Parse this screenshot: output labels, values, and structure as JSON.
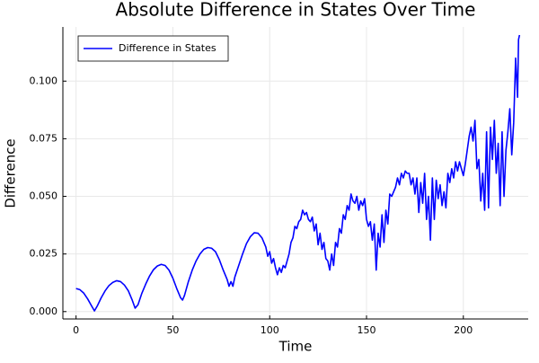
{
  "chart_data": {
    "type": "line",
    "title": "Absolute Difference in States Over Time",
    "xlabel": "Time",
    "ylabel": "Difference",
    "x": [
      0,
      2,
      4,
      6,
      8,
      9.5,
      11,
      13,
      15,
      17,
      19,
      21,
      23,
      25,
      27,
      29,
      30.5,
      32,
      34,
      36,
      38,
      40,
      42,
      44,
      46,
      48,
      50,
      52,
      54,
      55,
      56,
      58,
      60,
      62,
      64,
      66,
      68,
      70,
      72,
      74,
      76,
      78,
      79,
      80,
      81,
      82,
      84,
      86,
      88,
      90,
      92,
      94,
      96,
      98,
      99,
      100,
      101,
      102,
      103,
      104,
      105,
      106,
      107,
      108,
      110,
      111,
      112,
      113,
      114,
      115,
      116,
      117,
      118,
      119,
      120,
      121,
      122,
      123,
      124,
      125,
      126,
      127,
      128,
      129,
      130,
      131,
      132,
      133,
      134,
      135,
      136,
      137,
      138,
      139,
      140,
      141,
      142,
      143,
      144,
      145,
      146,
      147,
      148,
      149,
      150,
      151,
      152,
      153,
      154,
      155,
      156,
      157,
      158,
      159,
      160,
      161,
      162,
      163,
      164,
      165,
      166,
      167,
      168,
      169,
      170,
      171,
      172,
      173,
      174,
      175,
      176,
      177,
      178,
      179,
      180,
      181,
      182,
      183,
      184,
      185,
      186,
      187,
      188,
      189,
      190,
      191,
      192,
      193,
      194,
      195,
      196,
      197,
      198,
      199,
      200,
      201,
      202,
      203,
      204,
      205,
      206,
      207,
      208,
      209,
      210,
      211,
      212,
      213,
      214,
      215,
      216,
      217,
      218,
      219,
      220,
      221,
      222,
      223,
      224,
      225,
      226,
      227,
      228,
      228.5,
      229
    ],
    "series": [
      {
        "name": "Difference in States",
        "color": "#0000ff",
        "values": [
          0.01,
          0.0095,
          0.008,
          0.0055,
          0.0025,
          0.0003,
          0.0025,
          0.006,
          0.009,
          0.0113,
          0.0127,
          0.0134,
          0.013,
          0.0115,
          0.009,
          0.005,
          0.0015,
          0.003,
          0.008,
          0.012,
          0.0155,
          0.0182,
          0.0198,
          0.0205,
          0.02,
          0.018,
          0.0145,
          0.01,
          0.006,
          0.005,
          0.007,
          0.013,
          0.018,
          0.022,
          0.025,
          0.027,
          0.0278,
          0.0275,
          0.026,
          0.0225,
          0.018,
          0.014,
          0.011,
          0.013,
          0.011,
          0.015,
          0.02,
          0.025,
          0.0295,
          0.0325,
          0.0342,
          0.034,
          0.032,
          0.028,
          0.024,
          0.026,
          0.021,
          0.023,
          0.019,
          0.016,
          0.019,
          0.017,
          0.02,
          0.019,
          0.025,
          0.03,
          0.032,
          0.037,
          0.036,
          0.039,
          0.04,
          0.044,
          0.042,
          0.043,
          0.04,
          0.039,
          0.041,
          0.035,
          0.038,
          0.029,
          0.034,
          0.027,
          0.03,
          0.023,
          0.022,
          0.018,
          0.025,
          0.02,
          0.03,
          0.028,
          0.036,
          0.034,
          0.042,
          0.04,
          0.046,
          0.044,
          0.051,
          0.048,
          0.047,
          0.05,
          0.044,
          0.048,
          0.046,
          0.049,
          0.04,
          0.037,
          0.039,
          0.031,
          0.038,
          0.018,
          0.034,
          0.028,
          0.042,
          0.03,
          0.044,
          0.038,
          0.051,
          0.05,
          0.052,
          0.054,
          0.058,
          0.055,
          0.06,
          0.058,
          0.061,
          0.06,
          0.06,
          0.055,
          0.058,
          0.051,
          0.058,
          0.043,
          0.056,
          0.047,
          0.06,
          0.04,
          0.05,
          0.031,
          0.058,
          0.04,
          0.057,
          0.049,
          0.055,
          0.046,
          0.052,
          0.045,
          0.06,
          0.056,
          0.062,
          0.058,
          0.065,
          0.061,
          0.065,
          0.062,
          0.059,
          0.064,
          0.07,
          0.076,
          0.08,
          0.074,
          0.083,
          0.062,
          0.066,
          0.048,
          0.06,
          0.044,
          0.078,
          0.045,
          0.08,
          0.066,
          0.083,
          0.06,
          0.073,
          0.046,
          0.078,
          0.05,
          0.07,
          0.078,
          0.088,
          0.068,
          0.082,
          0.11,
          0.093,
          0.118,
          0.12
        ]
      }
    ],
    "xlim": [
      -6.8,
      233.5
    ],
    "xticks": [
      0,
      50,
      100,
      150,
      200
    ],
    "ylim": [
      -0.0032,
      0.1235
    ],
    "yticks": [
      {
        "value": 0,
        "label": "0.000"
      },
      {
        "value": 0.025,
        "label": "0.025"
      },
      {
        "value": 0.05,
        "label": "0.050"
      },
      {
        "value": 0.075,
        "label": "0.075"
      },
      {
        "value": 0.1,
        "label": "0.100"
      }
    ],
    "grid": true,
    "legend": "top-left"
  }
}
